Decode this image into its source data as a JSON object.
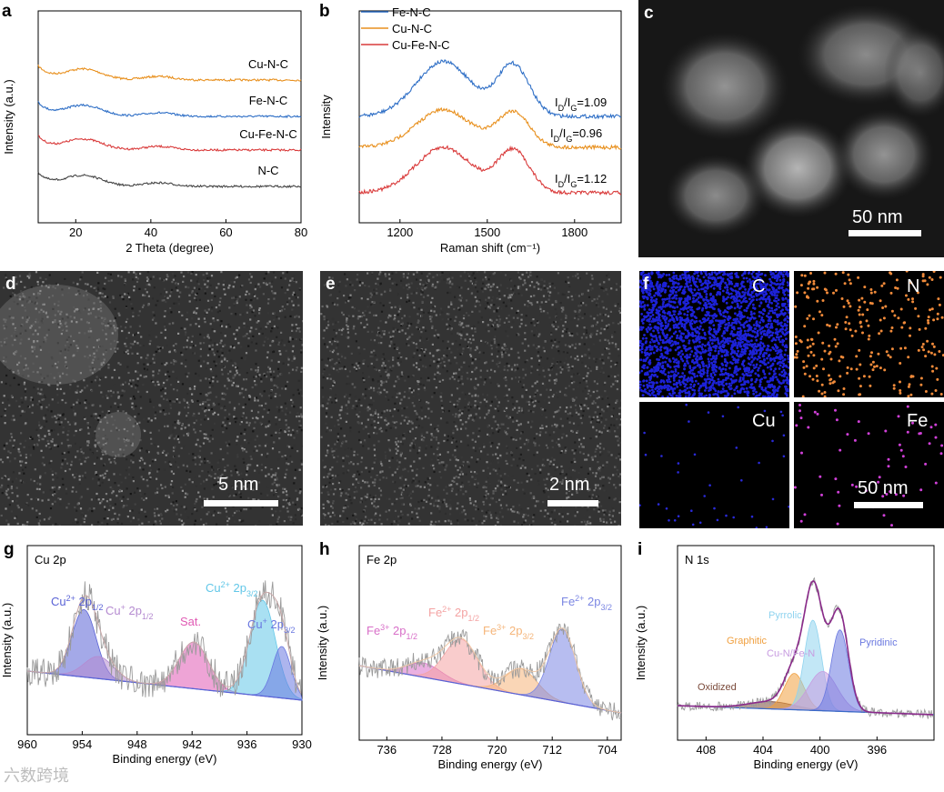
{
  "panels": {
    "a": {
      "label": "a"
    },
    "b": {
      "label": "b"
    },
    "c": {
      "label": "c",
      "scale_bar": "50 nm"
    },
    "d": {
      "label": "d",
      "scale_bar": "5 nm"
    },
    "e": {
      "label": "e",
      "scale_bar": "2 nm"
    },
    "f": {
      "label": "f",
      "scale_bar": "50 nm",
      "maps": [
        "C",
        "N",
        "Cu",
        "Fe"
      ]
    },
    "g": {
      "label": "g"
    },
    "h": {
      "label": "h"
    },
    "i": {
      "label": "i"
    }
  },
  "watermark": "六数跨境",
  "chart_data": [
    {
      "panel": "a",
      "type": "line",
      "xlabel": "2 Theta (degree)",
      "ylabel": "Intensity (a.u.)",
      "xlim": [
        10,
        80
      ],
      "xticks": [
        20,
        40,
        60,
        80
      ],
      "series": [
        {
          "name": "Cu-N-C",
          "color": "#e8901e",
          "offset": 3,
          "peak_x": [
            15,
            22
          ]
        },
        {
          "name": "Fe-N-C",
          "color": "#2f6fc6",
          "offset": 2,
          "peak_x": [
            15,
            22
          ]
        },
        {
          "name": "Cu-Fe-N-C",
          "color": "#d93a3a",
          "offset": 1,
          "peak_x": [
            15,
            22
          ]
        },
        {
          "name": "N-C",
          "color": "#444444",
          "offset": 0,
          "peak_x": [
            15,
            22
          ]
        }
      ]
    },
    {
      "panel": "b",
      "type": "line",
      "xlabel": "Raman shift (cm⁻¹)",
      "ylabel": "Intensity",
      "xlim": [
        1060,
        1960
      ],
      "xticks": [
        1200,
        1500,
        1800
      ],
      "legend": "top-left",
      "series": [
        {
          "name": "Fe-N-C",
          "color": "#2f6fc6",
          "ratio_text": "1.09",
          "D": 1350,
          "G": 1590
        },
        {
          "name": "Cu-N-C",
          "color": "#e8901e",
          "ratio_text": "0.96",
          "D": 1350,
          "G": 1590
        },
        {
          "name": "Cu-Fe-N-C",
          "color": "#d93a3a",
          "ratio_text": "1.12",
          "D": 1350,
          "G": 1590
        }
      ],
      "ratio_prefix": "I",
      "ratio_sub_d": "D",
      "ratio_sub_g": "G"
    },
    {
      "panel": "g",
      "type": "area",
      "title": "Cu 2p",
      "xlabel": "Binding energy (eV)",
      "ylabel": "Intensity (a.u.)",
      "xlim": [
        960,
        930
      ],
      "xticks": [
        960,
        954,
        948,
        942,
        936,
        930
      ],
      "peaks": [
        {
          "label_main": "Cu",
          "sup": "2+",
          "label_tail": " 2p",
          "sub": "1/2",
          "center": 953.8,
          "height": 0.55,
          "width": 1.3,
          "color": "#5a63d6"
        },
        {
          "label_main": "Cu",
          "sup": "+",
          "label_tail": " 2p",
          "sub": "1/2",
          "center": 952.2,
          "height": 0.18,
          "width": 1.6,
          "color": "#b48ad0"
        },
        {
          "label_main": "Sat.",
          "sup": "",
          "label_tail": "",
          "sub": "",
          "center": 941.8,
          "height": 0.38,
          "width": 1.6,
          "color": "#e05ab4"
        },
        {
          "label_main": "Cu",
          "sup": "2+",
          "label_tail": " 2p",
          "sub": "3/2",
          "center": 934.3,
          "height": 0.78,
          "width": 1.4,
          "color": "#62c7e8"
        },
        {
          "label_main": "Cu",
          "sup": "+",
          "label_tail": " 2p",
          "sub": "3/2",
          "center": 932.2,
          "height": 0.42,
          "width": 1.0,
          "color": "#6a78e0"
        }
      ]
    },
    {
      "panel": "h",
      "type": "area",
      "title": "Fe 2p",
      "xlabel": "Binding energy (eV)",
      "ylabel": "Intensity (a.u.)",
      "xlim": [
        740,
        702
      ],
      "xticks": [
        736,
        728,
        720,
        712,
        704
      ],
      "peaks": [
        {
          "label_main": "Fe",
          "sup": "3+",
          "label_tail": " 2p",
          "sub": "1/2",
          "center": 730.6,
          "height": 0.12,
          "width": 2.5,
          "color": "#d86fc8"
        },
        {
          "label_main": "Fe",
          "sup": "2+",
          "label_tail": " 2p",
          "sub": "1/2",
          "center": 725.2,
          "height": 0.38,
          "width": 2.4,
          "color": "#f4a3a3"
        },
        {
          "label_main": "Fe",
          "sup": "3+",
          "label_tail": " 2p",
          "sub": "3/2",
          "center": 716.5,
          "height": 0.22,
          "width": 2.3,
          "color": "#f5b57a"
        },
        {
          "label_main": "Fe",
          "sup": "2+",
          "label_tail": " 2p",
          "sub": "3/2",
          "center": 710.5,
          "height": 0.62,
          "width": 1.9,
          "color": "#7b86e3"
        }
      ]
    },
    {
      "panel": "i",
      "type": "area",
      "title": "N 1s",
      "xlabel": "Binding energy (eV)",
      "ylabel": "Intensity (a.u.)",
      "xlim": [
        410,
        392
      ],
      "xticks": [
        408,
        404,
        400,
        396
      ],
      "peaks": [
        {
          "label_main": "Oxidized",
          "sup": "",
          "label_tail": "",
          "sub": "",
          "center": 403.4,
          "height": 0.05,
          "width": 1.6,
          "color": "#7a4a3a"
        },
        {
          "label_main": "Graphitic",
          "sup": "",
          "label_tail": "",
          "sub": "",
          "center": 401.8,
          "height": 0.25,
          "width": 0.7,
          "color": "#f0a040"
        },
        {
          "label_main": "Pyrrolic",
          "sup": "",
          "label_tail": "",
          "sub": "",
          "center": 400.5,
          "height": 0.62,
          "width": 0.6,
          "color": "#8fd3ef"
        },
        {
          "label_main": "Cu-N/Fe-N",
          "sup": "",
          "label_tail": "",
          "sub": "",
          "center": 399.8,
          "height": 0.27,
          "width": 1.0,
          "color": "#c79be0"
        },
        {
          "label_main": "Pyridinic",
          "sup": "",
          "label_tail": "",
          "sub": "",
          "center": 398.6,
          "height": 0.56,
          "width": 0.6,
          "color": "#6a78e0"
        }
      ]
    }
  ]
}
